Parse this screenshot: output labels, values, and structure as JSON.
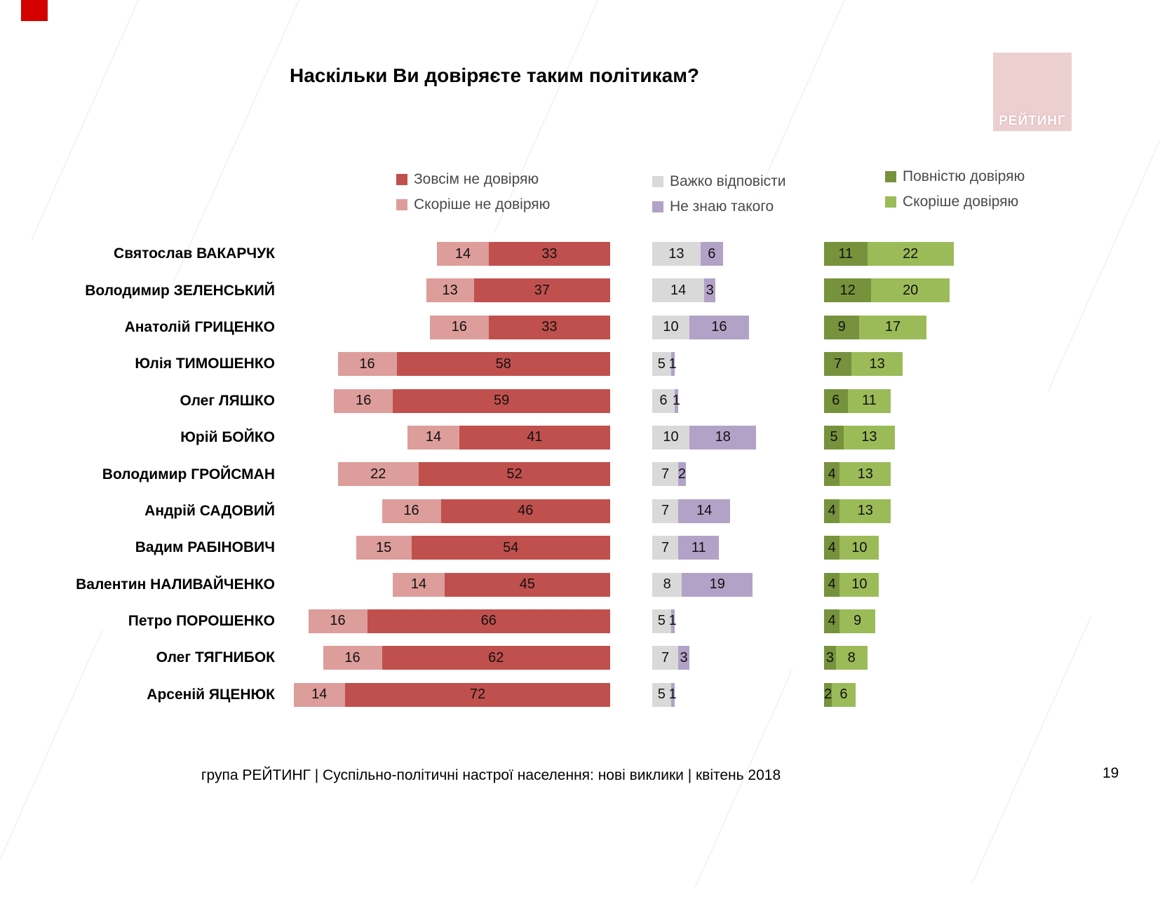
{
  "page": {
    "footer": "група РЕЙТИНГ  |  Суспільно-політичні настрої населення: нові виклики  |  квітень 2018",
    "page_number": "19",
    "logo": "РЕЙТИНГ"
  },
  "chart_data": {
    "type": "bar",
    "orientation": "horizontal",
    "layout": "three-panel diverging stacked bars",
    "title": "Наскільки Ви довіряєте таким політикам?",
    "unit": "percent",
    "legend_position": "top",
    "categories": [
      "Святослав ВАКАРЧУК",
      "Володимир ЗЕЛЕНСЬКИЙ",
      "Анатолій ГРИЦЕНКО",
      "Юлія ТИМОШЕНКО",
      "Олег ЛЯШКО",
      "Юрій БОЙКО",
      "Володимир ГРОЙСМАН",
      "Андрій САДОВИЙ",
      "Вадим РАБІНОВИЧ",
      "Валентин НАЛИВАЙЧЕНКО",
      "Петро ПОРОШЕНКО",
      "Олег ТЯГНИБОК",
      "Арсеній ЯЦЕНЮК"
    ],
    "series": [
      {
        "name": "Скоріше не довіряю",
        "panel": "left",
        "color": "#dd9d9b",
        "values": [
          14,
          13,
          16,
          16,
          16,
          14,
          22,
          16,
          15,
          14,
          16,
          16,
          14
        ]
      },
      {
        "name": "Зовсім не довіряю",
        "panel": "left",
        "color": "#c0504d",
        "values": [
          33,
          37,
          33,
          58,
          59,
          41,
          52,
          46,
          54,
          45,
          66,
          62,
          72
        ]
      },
      {
        "name": "Важко відповісти",
        "panel": "middle",
        "color": "#d9d9d9",
        "values": [
          13,
          14,
          10,
          5,
          6,
          10,
          7,
          7,
          7,
          8,
          5,
          7,
          5
        ]
      },
      {
        "name": "Не знаю такого",
        "panel": "middle",
        "color": "#b2a2c7",
        "values": [
          6,
          3,
          16,
          1,
          1,
          18,
          2,
          14,
          11,
          19,
          1,
          3,
          1
        ]
      },
      {
        "name": "Повністю довіряю",
        "panel": "right",
        "color": "#76923c",
        "values": [
          11,
          12,
          9,
          7,
          6,
          5,
          4,
          4,
          4,
          4,
          4,
          3,
          2
        ]
      },
      {
        "name": "Скоріше довіряю",
        "panel": "right",
        "color": "#9bbb59",
        "values": [
          22,
          20,
          17,
          13,
          11,
          13,
          13,
          13,
          10,
          10,
          9,
          8,
          6
        ]
      }
    ]
  }
}
